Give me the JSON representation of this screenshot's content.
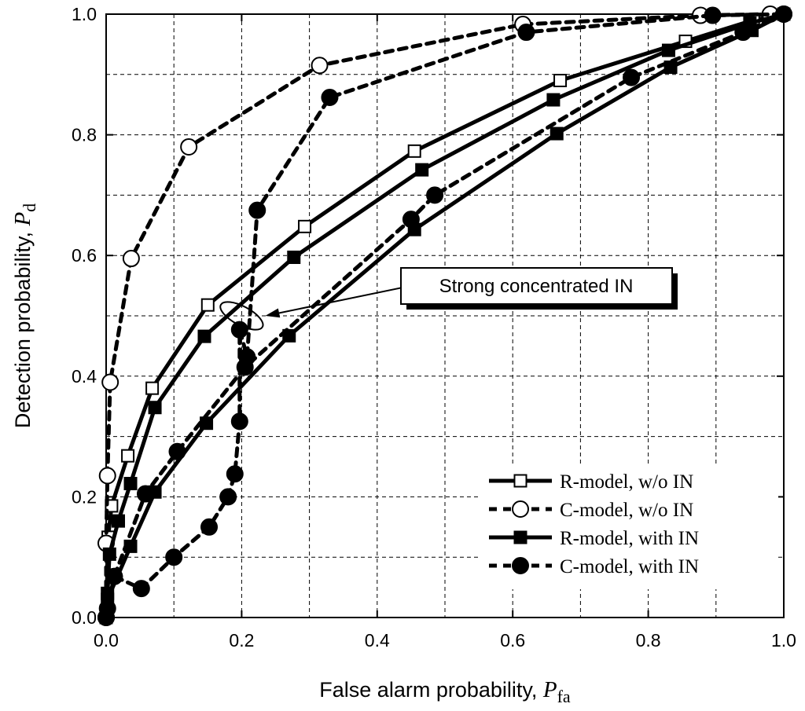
{
  "chart_data": {
    "type": "line",
    "xlabel": {
      "prefix": "False alarm probability, ",
      "symbol": "P",
      "sub": "fa"
    },
    "ylabel": {
      "prefix": "Detection probability, ",
      "symbol": "P",
      "sub": "d"
    },
    "xlim": [
      0,
      1
    ],
    "ylim": [
      0,
      1
    ],
    "xticks": [
      "0.0",
      "0.2",
      "0.4",
      "0.6",
      "0.8",
      "1.0"
    ],
    "yticks": [
      "0.0",
      "0.2",
      "0.4",
      "0.6",
      "0.8",
      "1.0"
    ],
    "grid": true,
    "legend_position": "bottom-right",
    "series": [
      {
        "name": "R-model, w/o IN",
        "line": "solid",
        "marker": "square-open",
        "x": [
          0.0,
          0.003,
          0.008,
          0.032,
          0.068,
          0.15,
          0.293,
          0.455,
          0.67,
          0.855,
          0.955,
          1.0
        ],
        "y": [
          0.0,
          0.133,
          0.185,
          0.268,
          0.38,
          0.518,
          0.648,
          0.773,
          0.89,
          0.955,
          0.99,
          1.0
        ]
      },
      {
        "name": "C-model, w/o IN",
        "line": "dashed",
        "marker": "circle-open",
        "x": [
          0.0,
          0.0,
          0.002,
          0.006,
          0.037,
          0.122,
          0.315,
          0.615,
          0.877,
          0.98,
          1.0
        ],
        "y": [
          0.0,
          0.123,
          0.235,
          0.39,
          0.595,
          0.78,
          0.915,
          0.983,
          0.998,
          1.0,
          1.0
        ]
      },
      {
        "name": "R-model, with IN",
        "line": "solid",
        "marker": "square-filled",
        "x": [
          0.0,
          0.002,
          0.005,
          0.018,
          0.036,
          0.072,
          0.145,
          0.277,
          0.466,
          0.66,
          0.83,
          0.95,
          1.0
        ],
        "y": [
          0.0,
          0.04,
          0.105,
          0.16,
          0.222,
          0.348,
          0.466,
          0.597,
          0.742,
          0.858,
          0.94,
          0.985,
          1.0
        ]
      },
      {
        "name": "R-model, with IN (strong concentrated IN)",
        "line": "solid",
        "marker": "square-filled",
        "x": [
          0.0,
          0.002,
          0.036,
          0.072,
          0.148,
          0.27,
          0.455,
          0.665,
          0.833,
          0.953,
          1.0
        ],
        "y": [
          0.0,
          0.03,
          0.118,
          0.208,
          0.322,
          0.467,
          0.643,
          0.802,
          0.912,
          0.973,
          1.0
        ]
      },
      {
        "name": "C-model, with IN",
        "line": "dashed",
        "marker": "circle-filled",
        "x": [
          0.0,
          0.002,
          0.012,
          0.052,
          0.1,
          0.152,
          0.18,
          0.19,
          0.197,
          0.197,
          0.208,
          0.223,
          0.33,
          0.62,
          0.895,
          1.0
        ],
        "y": [
          0.0,
          0.015,
          0.068,
          0.048,
          0.1,
          0.15,
          0.2,
          0.238,
          0.325,
          0.477,
          0.432,
          0.675,
          0.862,
          0.97,
          0.998,
          1.0
        ]
      },
      {
        "name": "C-model, with IN (strong concentrated IN)",
        "line": "dashed",
        "marker": "circle-filled",
        "x": [
          0.0,
          0.012,
          0.058,
          0.105,
          0.205,
          0.45,
          0.485,
          0.775,
          0.94,
          1.0
        ],
        "y": [
          0.0,
          0.068,
          0.205,
          0.275,
          0.415,
          0.66,
          0.7,
          0.895,
          0.97,
          1.0
        ]
      }
    ],
    "legend": [
      {
        "label": "R-model, w/o IN",
        "line": "solid",
        "marker": "square-open"
      },
      {
        "label": "C-model, w/o IN",
        "line": "dashed",
        "marker": "circle-open"
      },
      {
        "label": "R-model, with IN",
        "line": "solid",
        "marker": "square-filled"
      },
      {
        "label": "C-model, with IN",
        "line": "dashed",
        "marker": "circle-filled"
      }
    ],
    "annotation": {
      "text": "Strong concentrated IN",
      "ellipse_center": [
        0.2,
        0.5
      ]
    }
  }
}
